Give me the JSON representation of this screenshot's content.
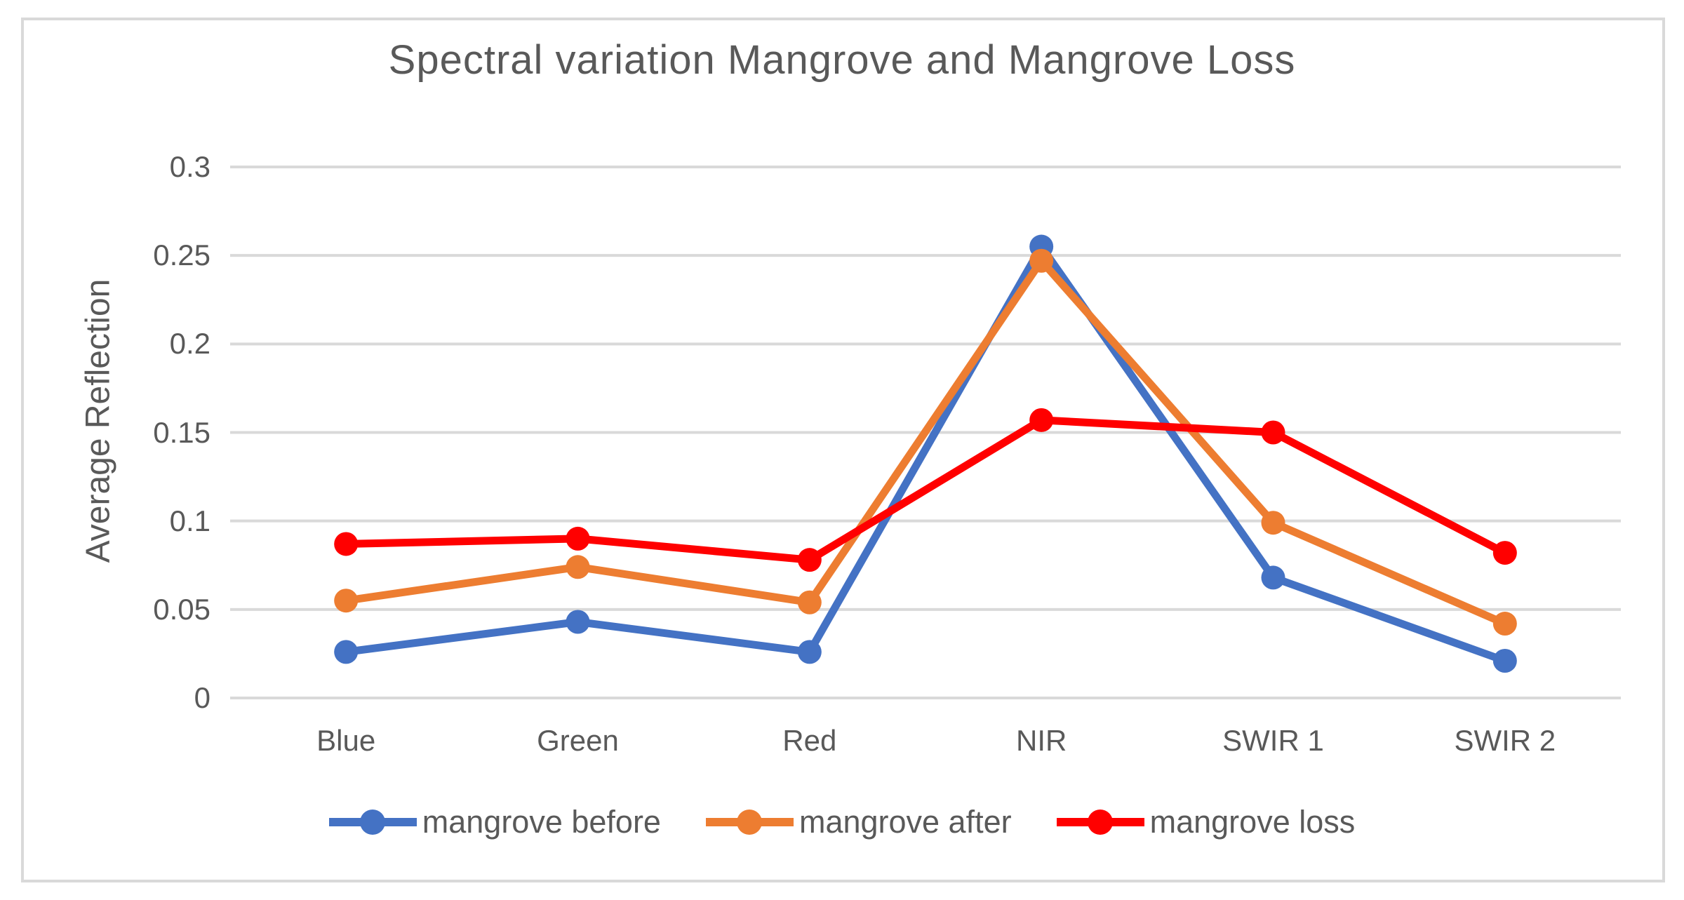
{
  "chart_data": {
    "type": "line",
    "title": "Spectral variation Mangrove and Mangrove Loss",
    "ylabel": "Average Reflection",
    "xlabel": "",
    "categories": [
      "Blue",
      "Green",
      "Red",
      "NIR",
      "SWIR 1",
      "SWIR 2"
    ],
    "series": [
      {
        "name": "mangrove before",
        "color": "#4472C4",
        "values": [
          0.026,
          0.043,
          0.026,
          0.255,
          0.068,
          0.021
        ]
      },
      {
        "name": "mangrove after",
        "color": "#ED7D31",
        "values": [
          0.055,
          0.074,
          0.054,
          0.247,
          0.099,
          0.042
        ]
      },
      {
        "name": "mangrove loss",
        "color": "#FF0000",
        "values": [
          0.087,
          0.09,
          0.078,
          0.157,
          0.15,
          0.082
        ]
      }
    ],
    "ylim": [
      0,
      0.3
    ],
    "yticks": [
      0,
      0.05,
      0.1,
      0.15,
      0.2,
      0.25,
      0.3
    ],
    "ytick_labels": [
      "0",
      "0.05",
      "0.1",
      "0.15",
      "0.2",
      "0.25",
      "0.3"
    ],
    "grid": true,
    "legend_position": "bottom",
    "grid_color": "#d9d9d9",
    "frame_color": "#d9d9d9",
    "text_color": "#595959"
  }
}
